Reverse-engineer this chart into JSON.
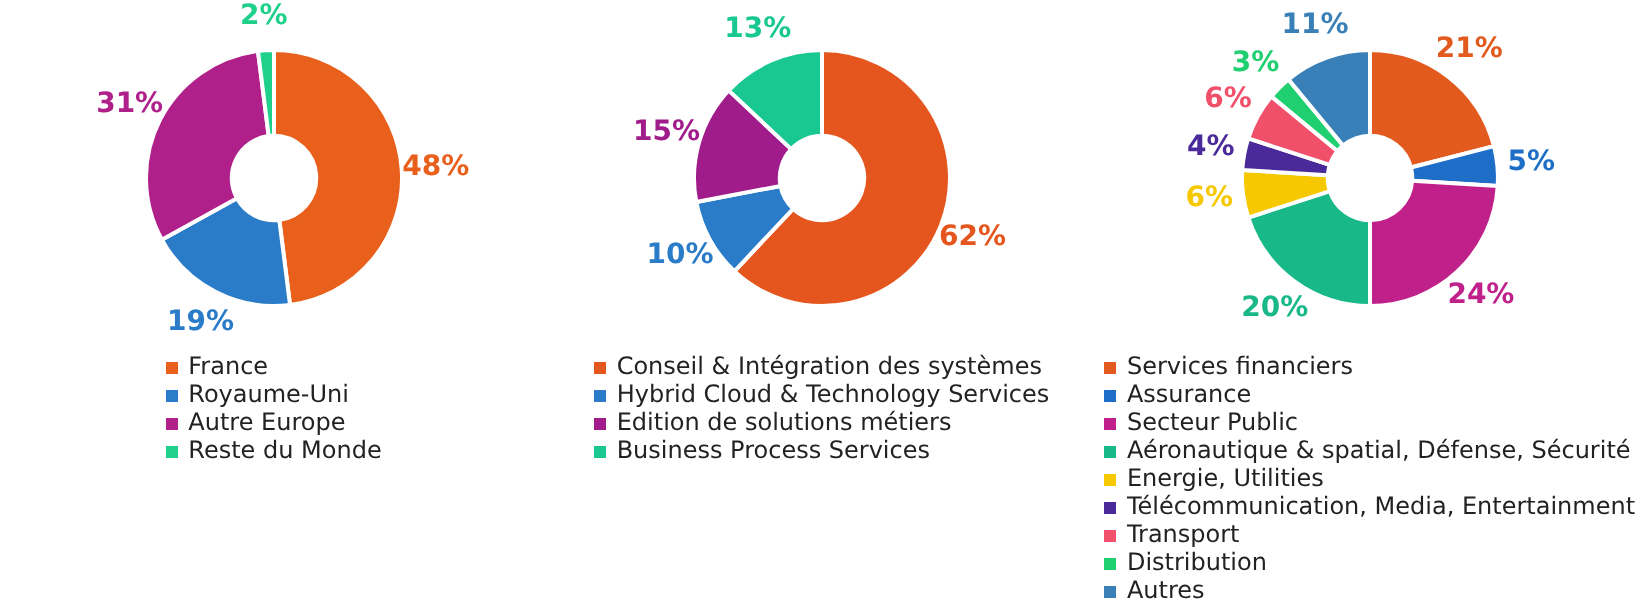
{
  "chart_data": [
    {
      "type": "donut",
      "categories": [
        "France",
        "Royaume-Uni",
        "Autre Europe",
        "Reste du Monde"
      ],
      "values": [
        48,
        19,
        31,
        2
      ],
      "value_labels": [
        "48%",
        "19%",
        "31%",
        "2%"
      ],
      "colors": [
        "#e8601c",
        "#2a7cc8",
        "#b0208a",
        "#1fd08a"
      ],
      "legend": "bottom"
    },
    {
      "type": "donut",
      "categories": [
        "Conseil & Intégration des systèmes",
        "Hybrid Cloud & Technology Services",
        "Edition de solutions métiers",
        "Business Process Services"
      ],
      "values": [
        62,
        10,
        15,
        13
      ],
      "value_labels": [
        "62%",
        "10%",
        "15%",
        "13%"
      ],
      "colors": [
        "#e4561e",
        "#2a7cc8",
        "#a01c8a",
        "#18c890"
      ],
      "legend": "bottom"
    },
    {
      "type": "donut",
      "categories": [
        "Services financiers",
        "Assurance",
        "Secteur Public",
        "Aéronautique & spatial, Défense, Sécurité",
        "Energie, Utilities",
        "Télécommunication, Media, Entertainment",
        "Transport",
        "Distribution",
        "Autres"
      ],
      "values": [
        21,
        5,
        24,
        20,
        6,
        4,
        6,
        3,
        11
      ],
      "value_labels": [
        "21%",
        "5%",
        "24%",
        "20%",
        "6%",
        "4%",
        "6%",
        "3%",
        "11%"
      ],
      "colors": [
        "#e35a1e",
        "#1e6ec8",
        "#c0208a",
        "#18b888",
        "#f5c800",
        "#4a2a9a",
        "#f0506a",
        "#20d070",
        "#3a80b8"
      ],
      "legend": "bottom"
    }
  ]
}
